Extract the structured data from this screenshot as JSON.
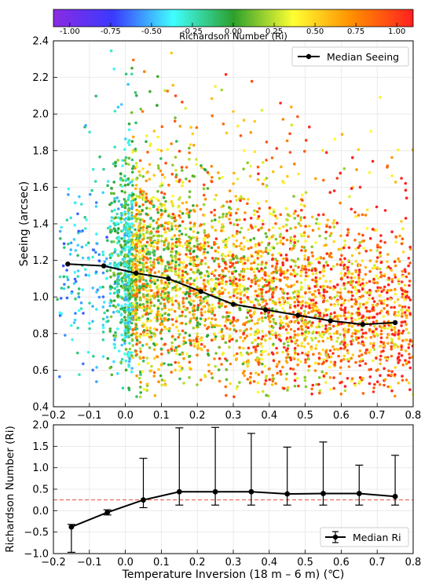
{
  "colorbar": {
    "label": "Richardson Number (Ri)",
    "range": [
      -1.1,
      1.1
    ],
    "ticks": [
      "-1.00",
      "-0.75",
      "-0.50",
      "-0.25",
      "0.00",
      "0.25",
      "0.50",
      "0.75",
      "1.00"
    ],
    "stops": [
      "#8a2be2",
      "#3a3aff",
      "#40ffff",
      "#2ca02c",
      "#ffff33",
      "#ff8c00",
      "#ff2020"
    ]
  },
  "chart_data": [
    {
      "type": "scatter",
      "ylabel": "Seeing (arcsec)",
      "xlim": [
        -0.2,
        0.8
      ],
      "ylim": [
        0.4,
        2.4
      ],
      "xticks": [
        "−0.2",
        "−0.1",
        "0.0",
        "0.1",
        "0.2",
        "0.3",
        "0.4",
        "0.5",
        "0.6",
        "0.7",
        "0.8"
      ],
      "yticks": [
        "0.4",
        "0.6",
        "0.8",
        "1.0",
        "1.2",
        "1.4",
        "1.6",
        "1.8",
        "2.0",
        "2.2",
        "2.4"
      ],
      "grid": true,
      "legend": {
        "label": "Median Seeing",
        "placement": "top-right"
      },
      "series": [
        {
          "name": "Median Seeing",
          "x": [
            -0.16,
            -0.06,
            0.03,
            0.12,
            0.21,
            0.3,
            0.39,
            0.48,
            0.57,
            0.66,
            0.75
          ],
          "y": [
            1.18,
            1.17,
            1.13,
            1.1,
            1.03,
            0.96,
            0.93,
            0.9,
            0.87,
            0.85,
            0.86
          ],
          "color": "#000000"
        }
      ],
      "scatter": {
        "color_by": "Richardson Number (Ri)",
        "x_extent": [
          -0.19,
          0.8
        ],
        "y_extent": [
          0.45,
          2.38
        ]
      }
    },
    {
      "type": "line",
      "xlabel": "Temperature Inversion (18 m – 6 m) (℃)",
      "ylabel": "Richardson Number (Ri)",
      "xlim": [
        -0.2,
        0.8
      ],
      "ylim": [
        -1.0,
        2.0
      ],
      "xticks": [
        "−0.2",
        "−0.1",
        "0.0",
        "0.1",
        "0.2",
        "0.3",
        "0.4",
        "0.5",
        "0.6",
        "0.7",
        "0.8"
      ],
      "yticks": [
        "−1.0",
        "−0.5",
        "0.0",
        "0.5",
        "1.0",
        "1.5",
        "2.0"
      ],
      "grid": true,
      "legend": {
        "label": "Median Ri",
        "placement": "bottom-right"
      },
      "reference_line": {
        "y": 0.25,
        "color": "#e74c3c",
        "style": "dashed"
      },
      "series": [
        {
          "name": "Median Ri",
          "x": [
            -0.15,
            -0.05,
            0.05,
            0.15,
            0.25,
            0.35,
            0.45,
            0.55,
            0.65,
            0.75
          ],
          "y": [
            -0.38,
            -0.04,
            0.25,
            0.44,
            0.44,
            0.44,
            0.39,
            0.4,
            0.4,
            0.33
          ],
          "err_low": [
            -0.97,
            -0.1,
            0.07,
            0.13,
            0.13,
            0.13,
            0.13,
            0.13,
            0.13,
            0.13
          ],
          "err_high": [
            -0.32,
            0.02,
            1.22,
            1.93,
            1.94,
            1.8,
            1.48,
            1.6,
            1.06,
            1.29
          ],
          "color": "#000000"
        }
      ]
    }
  ]
}
